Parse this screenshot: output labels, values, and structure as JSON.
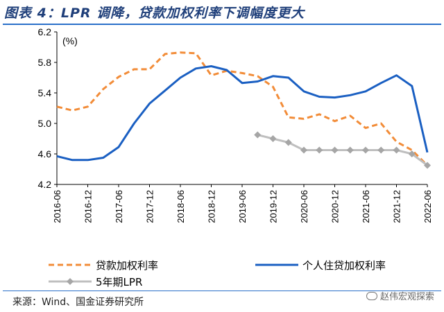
{
  "title": "图表 4：LPR 调降，贷款加权利率下调幅度更大",
  "source": "来源：Wind、国金证券研究所",
  "watermark": "赵伟宏观探索",
  "colors": {
    "title": "#1f3f7a",
    "rule": "#2a6fc9",
    "series_orange": "#f28c38",
    "series_blue": "#1a5fc2",
    "series_gray": "#bfbfbf",
    "marker_gray": "#a6a6a6"
  },
  "chart_data": {
    "type": "line",
    "unit_label": "(%)",
    "ylim": [
      4.2,
      6.2
    ],
    "yticks": [
      "6.2",
      "5.8",
      "5.4",
      "5.0",
      "4.6",
      "4.2"
    ],
    "xticks": [
      "2016-06",
      "2016-12",
      "2017-06",
      "2017-12",
      "2018-06",
      "2018-12",
      "2019-06",
      "2019-12",
      "2020-06",
      "2020-12",
      "2021-06",
      "2021-12",
      "2022-06"
    ],
    "x": [
      "2016-06",
      "2016-09",
      "2016-12",
      "2017-03",
      "2017-06",
      "2017-09",
      "2017-12",
      "2018-03",
      "2018-06",
      "2018-09",
      "2018-12",
      "2019-03",
      "2019-06",
      "2019-09",
      "2019-12",
      "2020-03",
      "2020-06",
      "2020-09",
      "2020-12",
      "2021-03",
      "2021-06",
      "2021-09",
      "2021-12",
      "2022-03",
      "2022-06"
    ],
    "series": [
      {
        "name": "贷款加权利率",
        "style": "dashed",
        "values": [
          5.22,
          5.17,
          5.22,
          5.45,
          5.61,
          5.71,
          5.71,
          5.91,
          5.93,
          5.92,
          5.63,
          5.69,
          5.66,
          5.62,
          5.48,
          5.08,
          5.06,
          5.12,
          5.03,
          5.1,
          4.94,
          5.0,
          4.76,
          4.65,
          4.45
        ]
      },
      {
        "name": "个人住贷加权利率",
        "style": "solid",
        "values": [
          4.57,
          4.52,
          4.52,
          4.55,
          4.69,
          5.0,
          5.26,
          5.43,
          5.6,
          5.72,
          5.75,
          5.7,
          5.53,
          5.55,
          5.62,
          5.6,
          5.42,
          5.35,
          5.34,
          5.37,
          5.42,
          5.53,
          5.63,
          5.49,
          4.62
        ]
      },
      {
        "name": "5年期LPR",
        "style": "marker",
        "x": [
          "2019-09",
          "2019-12",
          "2020-03",
          "2020-06",
          "2020-09",
          "2020-12",
          "2021-03",
          "2021-06",
          "2021-09",
          "2021-12",
          "2022-03",
          "2022-06"
        ],
        "values": [
          4.85,
          4.8,
          4.75,
          4.65,
          4.65,
          4.65,
          4.65,
          4.65,
          4.65,
          4.65,
          4.6,
          4.45
        ]
      }
    ],
    "legend_position": "bottom",
    "grid": false
  }
}
